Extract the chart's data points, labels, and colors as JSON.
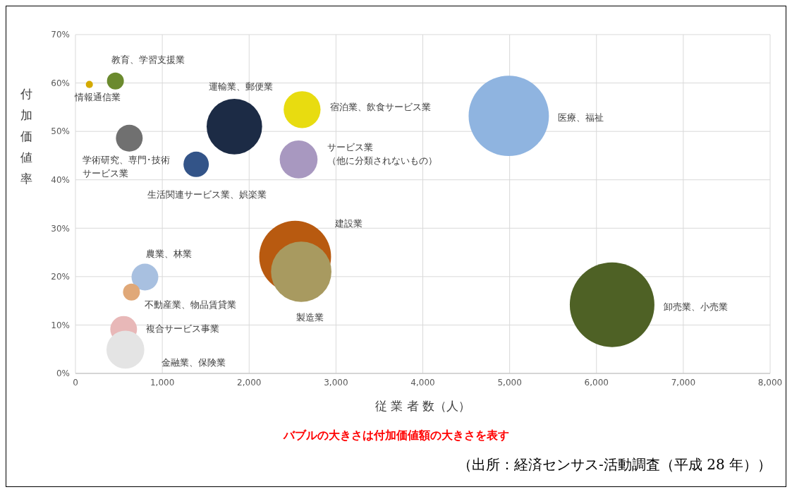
{
  "chart_data": {
    "type": "bubble",
    "xlabel": "従 業 者 数（人）",
    "ylabel": "付加価値率",
    "xlim": [
      0,
      8000
    ],
    "xticks": [
      0,
      {
        "value": 1000,
        "label": "1,000"
      },
      {
        "value": 2000,
        "label": "2,000"
      },
      {
        "value": 3000,
        "label": "3,000"
      },
      {
        "value": 4000,
        "label": "4,000"
      },
      {
        "value": 5000,
        "label": "5,000"
      },
      {
        "value": 6000,
        "label": "6,000"
      },
      {
        "value": 7000,
        "label": "7,000"
      },
      {
        "value": 8000,
        "label": "8,000"
      }
    ],
    "ylim": [
      0,
      70
    ],
    "yticks": [
      {
        "value": 0,
        "label": "0%"
      },
      {
        "value": 10,
        "label": "10%"
      },
      {
        "value": 20,
        "label": "20%"
      },
      {
        "value": 30,
        "label": "30%"
      },
      {
        "value": 40,
        "label": "40%"
      },
      {
        "value": 50,
        "label": "50%"
      },
      {
        "value": 60,
        "label": "60%"
      },
      {
        "value": 70,
        "label": "70%"
      }
    ],
    "grid": true,
    "legend": false,
    "series": [
      {
        "name": "情報通信業",
        "color": "#d4aa00",
        "x": [
          160
        ],
        "values": [
          59.7
        ],
        "sizes": [
          0.007
        ]
      },
      {
        "name": "教育、学習支援業",
        "color": "#6b8a2e",
        "x": [
          460
        ],
        "values": [
          60.4
        ],
        "sizes": [
          0.04
        ]
      },
      {
        "name": "学術研究、専門･技術サービス業",
        "color": "#707070",
        "x": [
          620
        ],
        "values": [
          48.6
        ],
        "sizes": [
          0.1
        ]
      },
      {
        "name": "運輸業、郵便業",
        "color": "#1c2b45",
        "x": [
          1830
        ],
        "values": [
          51
        ],
        "sizes": [
          0.43
        ]
      },
      {
        "name": "生活関連サービス業、娯楽業",
        "color": "#335488",
        "x": [
          1390
        ],
        "values": [
          43.2
        ],
        "sizes": [
          0.09
        ]
      },
      {
        "name": "宿泊業、飲食サービス業",
        "color": "#e8dc10",
        "x": [
          2610
        ],
        "values": [
          54.5
        ],
        "sizes": [
          0.19
        ]
      },
      {
        "name": "サービス業（他に分類されないもの）",
        "color": "#a898c0",
        "x": [
          2570
        ],
        "values": [
          44.2
        ],
        "sizes": [
          0.2
        ]
      },
      {
        "name": "医療、福祉",
        "color": "#8fb4e0",
        "x": [
          4990
        ],
        "values": [
          53.2
        ],
        "sizes": [
          0.9
        ]
      },
      {
        "name": "建設業",
        "color": "#b85a10",
        "x": [
          2530
        ],
        "values": [
          24.1
        ],
        "sizes": [
          0.72
        ]
      },
      {
        "name": "製造業",
        "color": "#a89a60",
        "x": [
          2600
        ],
        "values": [
          21
        ],
        "sizes": [
          0.51
        ]
      },
      {
        "name": "卸売業、小売業",
        "color": "#4e6125",
        "x": [
          6180
        ],
        "values": [
          14.2
        ],
        "sizes": [
          1
        ]
      },
      {
        "name": "農業、林業",
        "color": "#a8c0e0",
        "x": [
          800
        ],
        "values": [
          19.9
        ],
        "sizes": [
          0.1
        ]
      },
      {
        "name": "不動産業、物品賃貸業",
        "color": "#e0a878",
        "x": [
          645
        ],
        "values": [
          16.8
        ],
        "sizes": [
          0.04
        ]
      },
      {
        "name": "複合サービス事業",
        "color": "#e8b8b8",
        "x": [
          555
        ],
        "values": [
          9.1
        ],
        "sizes": [
          0.1
        ]
      },
      {
        "name": "金融業、保険業",
        "color": "#e4e4e4",
        "x": [
          575
        ],
        "values": [
          4.9
        ],
        "sizes": [
          0.2
        ]
      }
    ],
    "annotations": [
      "バブルの大きさは付加価値額の大きさを表す",
      "（出所：経済センサス‐活動調査（平成 28 年））"
    ]
  }
}
